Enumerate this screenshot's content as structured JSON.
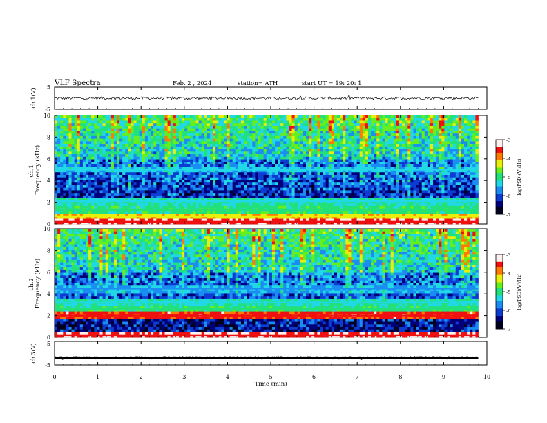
{
  "header": {
    "title": "VLF  Spectra",
    "date": "Feb. 2  , 2024",
    "station": "station= ATH",
    "start": "start  UT  =    19: 20: 1"
  },
  "colors": {
    "spectrum": [
      "#00001f",
      "#00007a",
      "#0c3cd2",
      "#1a8cf2",
      "#20d8e6",
      "#22e07a",
      "#66ef1c",
      "#e8ef0a",
      "#ff7a00",
      "#ef1010",
      "#fff0f0"
    ]
  },
  "chart_data": [
    {
      "type": "line",
      "name": "ch1-waveform",
      "ylabel": "ch.1(V)",
      "ylim": [
        -5,
        5
      ],
      "yticks": [
        "5",
        "-5"
      ],
      "baseline": 0,
      "noise_amplitude": 0.6
    },
    {
      "type": "heatmap",
      "name": "ch1-spectrogram",
      "ylabel": "ch.1\nFrequency  (kHz)",
      "ylim": [
        0,
        10
      ],
      "yticks": [
        "0",
        "2",
        "4",
        "6",
        "8",
        "10"
      ],
      "colorbar": {
        "label": "log(PSD)(V²/Hz)",
        "range": [
          -7,
          -3
        ],
        "ticks": [
          "-3",
          "-4",
          "-5",
          "-6",
          "-7"
        ]
      },
      "bands": [
        {
          "f": 0.2,
          "level": -3.4
        },
        {
          "f": 0.7,
          "level": -4.2
        },
        {
          "f": 1.3,
          "level": -5.0
        },
        {
          "f": 2.1,
          "level": -5.2
        },
        {
          "f": 5.0,
          "level": -5.5
        }
      ]
    },
    {
      "type": "heatmap",
      "name": "ch2-spectrogram",
      "ylabel": "ch.2\nFrequency  (kHz)",
      "ylim": [
        0,
        10
      ],
      "yticks": [
        "0",
        "2",
        "4",
        "6",
        "8",
        "10"
      ],
      "colorbar": {
        "label": "log(PSD)(V²/Hz)",
        "range": [
          -7,
          -3
        ],
        "ticks": [
          "-3",
          "-4",
          "-5",
          "-6",
          "-7"
        ]
      },
      "bands": [
        {
          "f": 0.2,
          "level": -3.4
        },
        {
          "f": 2.0,
          "level": -3.6
        },
        {
          "f": 2.6,
          "level": -5.0
        },
        {
          "f": 3.2,
          "level": -5.2
        },
        {
          "f": 4.5,
          "level": -5.6
        }
      ]
    },
    {
      "type": "line",
      "name": "ch3-waveform",
      "ylabel": "ch.3(V)",
      "ylim": [
        -5,
        5
      ],
      "yticks": [
        "5",
        "-5"
      ],
      "baseline": -2,
      "noise_amplitude": 0.15
    }
  ],
  "time_axis": {
    "xlabel": "Time  (min)",
    "xlim": [
      0,
      10
    ],
    "ticks": [
      "0",
      "1",
      "2",
      "3",
      "4",
      "5",
      "6",
      "7",
      "8",
      "9",
      "10"
    ],
    "data_end": 9.8
  }
}
